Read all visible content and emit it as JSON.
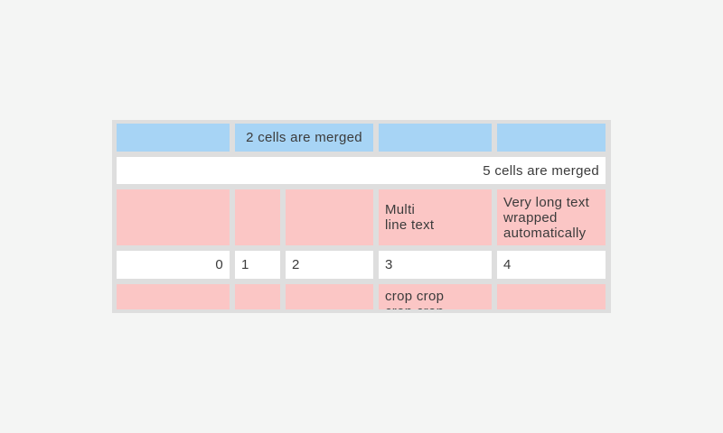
{
  "colors": {
    "page_bg": "#f4f5f4",
    "table_bg": "#dedede",
    "cell_blue": "#a7d4f5",
    "cell_pink": "#fbc6c5",
    "cell_white": "#ffffff",
    "text_color": "#3b3b3b"
  },
  "table": {
    "row_merged2": {
      "cell1": "",
      "merged": "2 cells are merged",
      "cell4": "",
      "cell5": ""
    },
    "row_merged5": {
      "merged": "5 cells are merged"
    },
    "row_multiline": {
      "cell1": "",
      "cell2": "",
      "cell3": "",
      "cell4": "Multi\nline text",
      "cell5": "Very long text wrapped automatically"
    },
    "row_numbers": {
      "cell1": "0",
      "cell2": "1",
      "cell3": "2",
      "cell4": "3",
      "cell5": "4"
    },
    "row_crop": {
      "cell1": "",
      "cell2": "",
      "cell3": "",
      "cell4": "crop crop\ncrop crop",
      "cell5": ""
    }
  }
}
